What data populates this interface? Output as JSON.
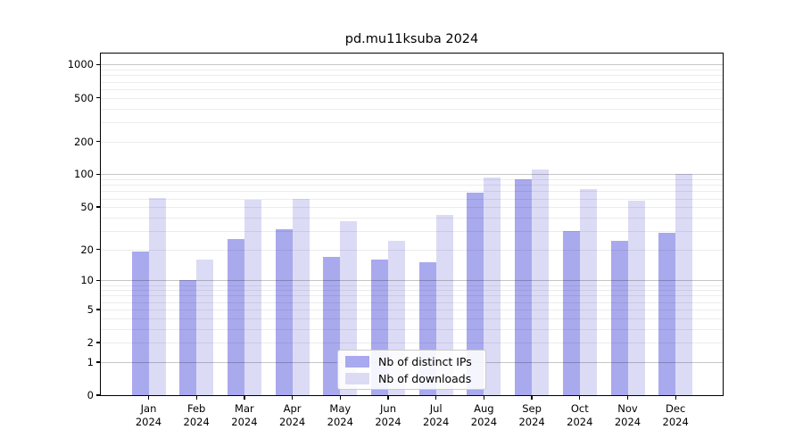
{
  "figure": {
    "title": "pd.mu11ksuba 2024"
  },
  "chart_data": {
    "type": "bar",
    "title": "pd.mu11ksuba 2024",
    "categories": [
      "Jan 2024",
      "Feb 2024",
      "Mar 2024",
      "Apr 2024",
      "May 2024",
      "Jun 2024",
      "Jul 2024",
      "Aug 2024",
      "Sep 2024",
      "Oct 2024",
      "Nov 2024",
      "Dec 2024"
    ],
    "series": [
      {
        "name": "Nb of distinct IPs",
        "color": "#a9a9ee",
        "values": [
          19,
          10,
          25,
          31,
          17,
          16,
          15,
          68,
          90,
          30,
          24,
          29
        ]
      },
      {
        "name": "Nb of downloads",
        "color": "#dbdbf6",
        "values": [
          61,
          16,
          58,
          59,
          37,
          24,
          42,
          93,
          110,
          73,
          57,
          100
        ]
      }
    ],
    "xlabel": "",
    "ylabel": "",
    "y_axis": {
      "scale": "log10(1+x)",
      "tick_values": [
        1000,
        500,
        200,
        100,
        50,
        20,
        10,
        5,
        2,
        1,
        0
      ],
      "major_gridline_values": [
        1,
        10,
        100,
        1000
      ],
      "ylim": [
        0,
        1300
      ]
    },
    "grid": "on",
    "legend_position": "lower center"
  },
  "colors": {
    "major_grid": "#c6c6c6",
    "minor_grid": "#ebebeb",
    "axis": "#000000",
    "background": "#ffffff"
  }
}
